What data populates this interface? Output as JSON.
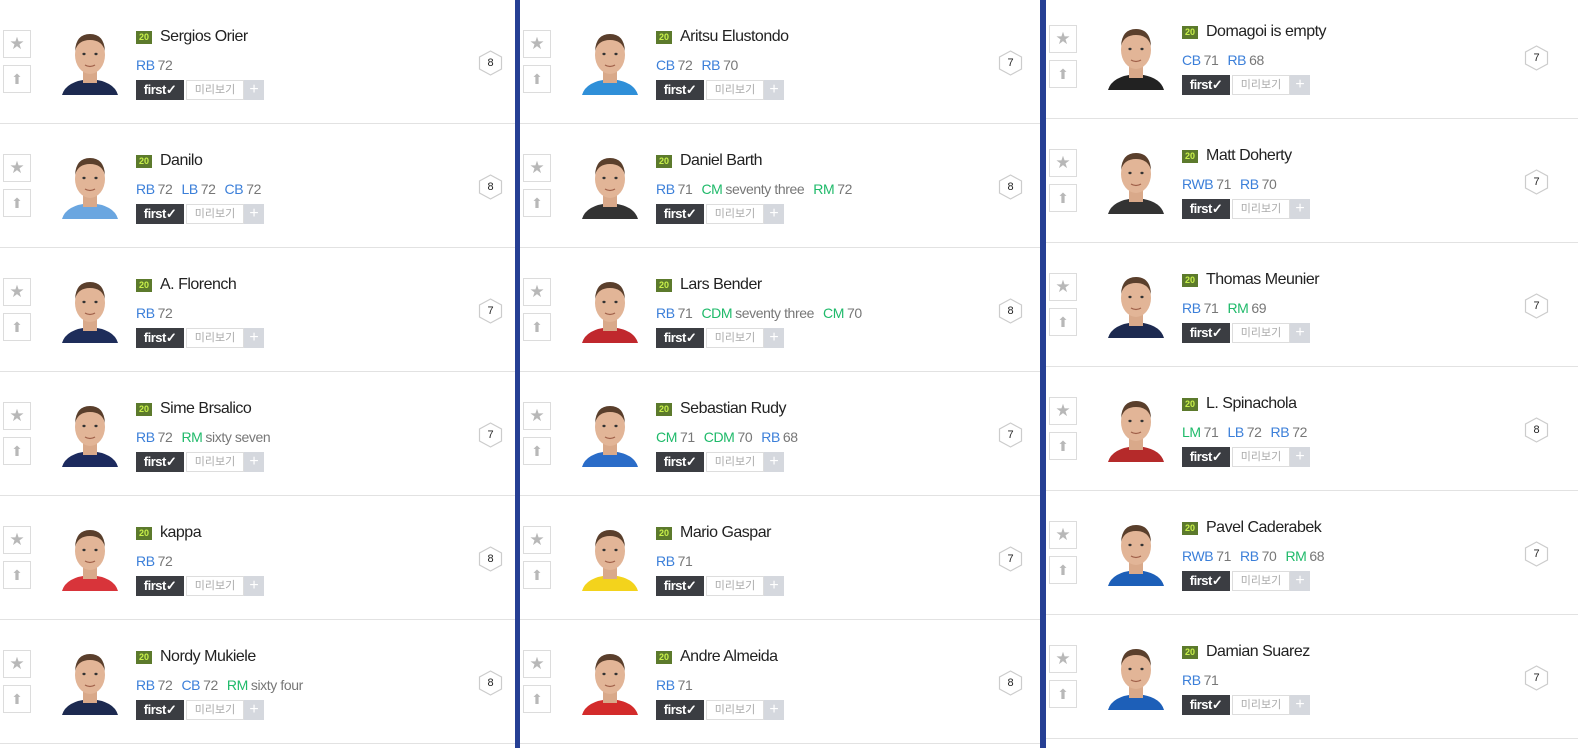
{
  "labels": {
    "season_badge": "20",
    "first_button": "first✓",
    "preview_button": "미리보기",
    "plus_button": "+"
  },
  "colors": {
    "column_highlight": "#263f94",
    "position_defender": "#3b7fd9",
    "position_midfield": "#1fba6a",
    "season_badge": "#5c7a2c"
  },
  "columns": [
    [
      {
        "name": "Sergios Orier",
        "positions": [
          {
            "pos": "RB",
            "val": "72",
            "group": "blue"
          }
        ],
        "level": "8",
        "shirt": "#1d2a50"
      },
      {
        "name": "Danilo",
        "positions": [
          {
            "pos": "RB",
            "val": "72",
            "group": "blue"
          },
          {
            "pos": "LB",
            "val": "72",
            "group": "blue"
          },
          {
            "pos": "CB",
            "val": "72",
            "group": "blue"
          }
        ],
        "level": "8",
        "shirt": "#6aa6e0"
      },
      {
        "name": "A. Florench",
        "positions": [
          {
            "pos": "RB",
            "val": "72",
            "group": "blue"
          }
        ],
        "level": "7",
        "shirt": "#1e2d5a"
      },
      {
        "name": "Sime Brsalico",
        "positions": [
          {
            "pos": "RB",
            "val": "72",
            "group": "blue"
          },
          {
            "pos": "RM",
            "val": "sixty seven",
            "group": "green"
          }
        ],
        "level": "7",
        "shirt": "#1c2a5e"
      },
      {
        "name": "kappa",
        "positions": [
          {
            "pos": "RB",
            "val": "72",
            "group": "blue"
          }
        ],
        "level": "8",
        "shirt": "#d8343a"
      },
      {
        "name": "Nordy Mukiele",
        "positions": [
          {
            "pos": "RB",
            "val": "72",
            "group": "blue"
          },
          {
            "pos": "CB",
            "val": "72",
            "group": "blue"
          },
          {
            "pos": "RM",
            "val": "sixty four",
            "group": "green"
          }
        ],
        "level": "8",
        "shirt": "#1d2a50"
      }
    ],
    [
      {
        "name": "Aritsu Elustondo",
        "positions": [
          {
            "pos": "CB",
            "val": "72",
            "group": "blue"
          },
          {
            "pos": "RB",
            "val": "70",
            "group": "blue"
          }
        ],
        "level": "7",
        "shirt": "#2f8fd8"
      },
      {
        "name": "Daniel Barth",
        "positions": [
          {
            "pos": "RB",
            "val": "71",
            "group": "blue"
          },
          {
            "pos": "CM",
            "val": "seventy three",
            "group": "green"
          },
          {
            "pos": "RM",
            "val": "72",
            "group": "green"
          }
        ],
        "level": "8",
        "shirt": "#333"
      },
      {
        "name": "Lars Bender",
        "positions": [
          {
            "pos": "RB",
            "val": "71",
            "group": "blue"
          },
          {
            "pos": "CDM",
            "val": "seventy three",
            "group": "green"
          },
          {
            "pos": "CM",
            "val": "70",
            "group": "green"
          }
        ],
        "level": "8",
        "shirt": "#c0282d"
      },
      {
        "name": "Sebastian Rudy",
        "positions": [
          {
            "pos": "CM",
            "val": "71",
            "group": "green"
          },
          {
            "pos": "CDM",
            "val": "70",
            "group": "green"
          },
          {
            "pos": "RB",
            "val": "68",
            "group": "blue"
          }
        ],
        "level": "7",
        "shirt": "#2a6cc8"
      },
      {
        "name": "Mario Gaspar",
        "positions": [
          {
            "pos": "RB",
            "val": "71",
            "group": "blue"
          }
        ],
        "level": "7",
        "shirt": "#f3d31c"
      },
      {
        "name": "Andre Almeida",
        "positions": [
          {
            "pos": "RB",
            "val": "71",
            "group": "blue"
          }
        ],
        "level": "8",
        "shirt": "#d32b2b"
      }
    ],
    [
      {
        "name": "Domagoi is empty",
        "positions": [
          {
            "pos": "CB",
            "val": "71",
            "group": "blue"
          },
          {
            "pos": "RB",
            "val": "68",
            "group": "blue"
          }
        ],
        "level": "7",
        "shirt": "#222"
      },
      {
        "name": "Matt Doherty",
        "positions": [
          {
            "pos": "RWB",
            "val": "71",
            "group": "blue"
          },
          {
            "pos": "RB",
            "val": "70",
            "group": "blue"
          }
        ],
        "level": "7",
        "shirt": "#333"
      },
      {
        "name": "Thomas Meunier",
        "positions": [
          {
            "pos": "RB",
            "val": "71",
            "group": "blue"
          },
          {
            "pos": "RM",
            "val": "69",
            "group": "green"
          }
        ],
        "level": "7",
        "shirt": "#1d2a50"
      },
      {
        "name": "L. Spinachola",
        "positions": [
          {
            "pos": "LM",
            "val": "71",
            "group": "green"
          },
          {
            "pos": "LB",
            "val": "72",
            "group": "blue"
          },
          {
            "pos": "RB",
            "val": "72",
            "group": "blue"
          }
        ],
        "level": "8",
        "shirt": "#b52a2a"
      },
      {
        "name": "Pavel Caderabek",
        "positions": [
          {
            "pos": "RWB",
            "val": "71",
            "group": "blue"
          },
          {
            "pos": "RB",
            "val": "70",
            "group": "blue"
          },
          {
            "pos": "RM",
            "val": "68",
            "group": "green"
          }
        ],
        "level": "7",
        "shirt": "#1d5fb8"
      },
      {
        "name": "Damian Suarez",
        "positions": [
          {
            "pos": "RB",
            "val": "71",
            "group": "blue"
          }
        ],
        "level": "7",
        "shirt": "#1d5fb8"
      }
    ]
  ]
}
